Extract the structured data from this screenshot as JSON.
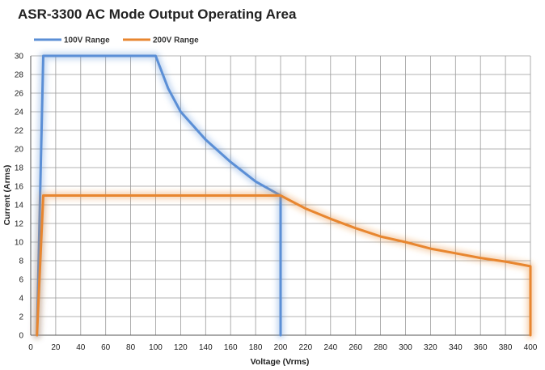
{
  "chart_data": {
    "type": "line",
    "title": "ASR-3300 AC Mode Output Operating Area",
    "xlabel": "Voltage (Vrms)",
    "ylabel": "Current (Arms)",
    "xlim": [
      0,
      400
    ],
    "ylim": [
      0,
      30
    ],
    "x_ticks": [
      0,
      20,
      40,
      60,
      80,
      100,
      120,
      140,
      160,
      180,
      200,
      220,
      240,
      260,
      280,
      300,
      320,
      340,
      360,
      380,
      400
    ],
    "y_ticks": [
      0,
      2,
      4,
      6,
      8,
      10,
      12,
      14,
      16,
      18,
      20,
      22,
      24,
      26,
      28,
      30
    ],
    "x_tick_labels": [
      "0",
      "20",
      "40",
      "60",
      "80",
      "100",
      "120",
      "140",
      "160",
      "180",
      "200",
      "220",
      "240",
      "260",
      "280",
      "300",
      "320",
      "340",
      "360",
      "380",
      "400"
    ],
    "y_tick_labels": [
      "0",
      "2",
      "4",
      "6",
      "8",
      "10",
      "12",
      "14",
      "16",
      "18",
      "20",
      "22",
      "24",
      "26",
      "28",
      "30"
    ],
    "grid": true,
    "legend_position": "top-left",
    "series": [
      {
        "name": "100V Range",
        "color": "#5b8fd6",
        "points": [
          [
            5,
            0
          ],
          [
            10,
            30
          ],
          [
            100,
            30
          ],
          [
            110,
            26.5
          ],
          [
            120,
            24
          ],
          [
            140,
            21
          ],
          [
            160,
            18.6
          ],
          [
            180,
            16.5
          ],
          [
            200,
            15
          ],
          [
            200,
            0
          ]
        ]
      },
      {
        "name": "200V Range",
        "color": "#e8862f",
        "points": [
          [
            5,
            0
          ],
          [
            10,
            15
          ],
          [
            200,
            15
          ],
          [
            220,
            13.6
          ],
          [
            240,
            12.5
          ],
          [
            260,
            11.5
          ],
          [
            280,
            10.6
          ],
          [
            300,
            10
          ],
          [
            320,
            9.3
          ],
          [
            340,
            8.8
          ],
          [
            360,
            8.3
          ],
          [
            380,
            7.9
          ],
          [
            400,
            7.4
          ],
          [
            400,
            0
          ]
        ]
      }
    ]
  }
}
